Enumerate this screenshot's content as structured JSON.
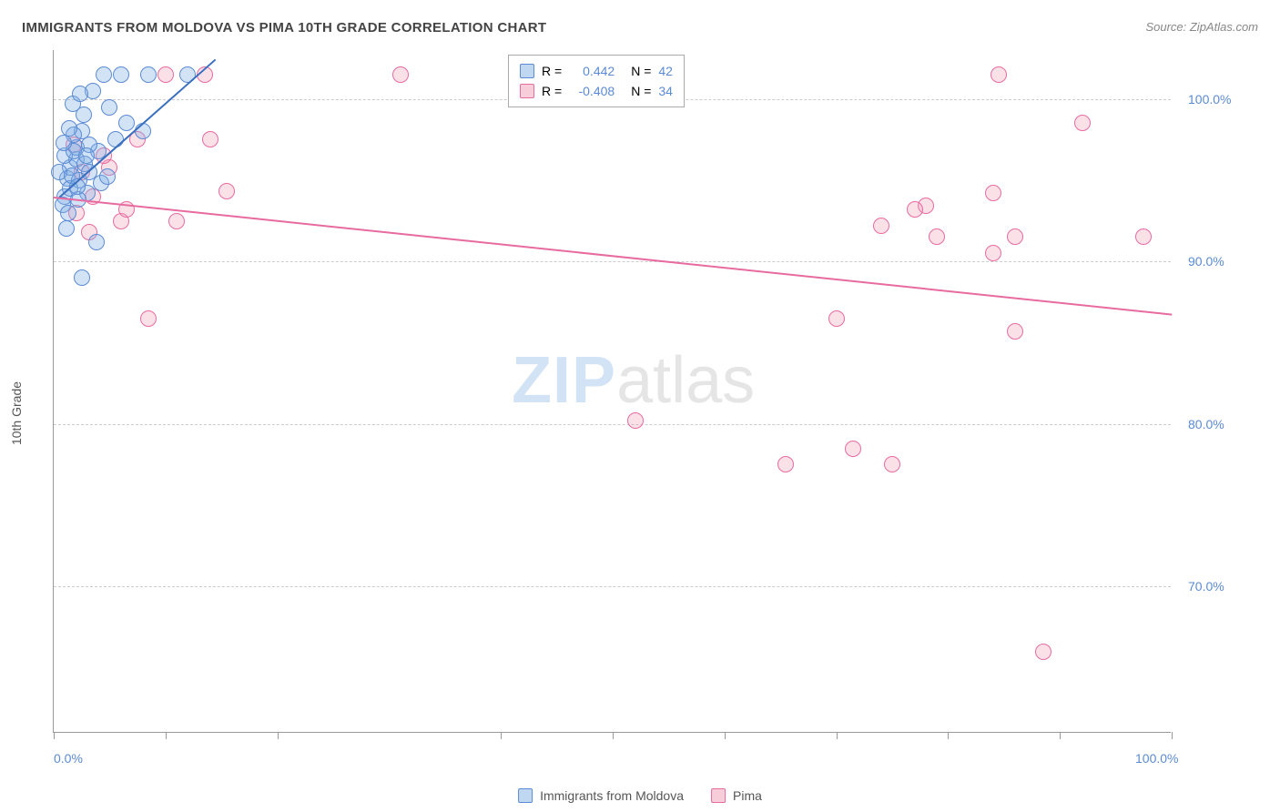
{
  "title": "IMMIGRANTS FROM MOLDOVA VS PIMA 10TH GRADE CORRELATION CHART",
  "source": "Source: ZipAtlas.com",
  "y_axis_label": "10th Grade",
  "watermark_zip": "ZIP",
  "watermark_rest": "atlas",
  "chart": {
    "type": "scatter",
    "xlim": [
      0,
      100
    ],
    "ylim": [
      61,
      103
    ],
    "y_ticks": [
      70,
      80,
      90,
      100
    ],
    "y_tick_labels": [
      "70.0%",
      "80.0%",
      "90.0%",
      "100.0%"
    ],
    "x_ticks": [
      0,
      10,
      20,
      40,
      50,
      60,
      70,
      80,
      90,
      100
    ],
    "x_tick_labels_shown": {
      "0": "0.0%",
      "100": "100.0%"
    },
    "background_color": "#ffffff",
    "grid_color": "#cccccc",
    "marker_radius": 9,
    "series": {
      "blue": {
        "label": "Immigrants from Moldova",
        "color_fill": "rgba(130,175,230,0.35)",
        "color_stroke": "#5b8bd4",
        "R": "0.442",
        "N": "42",
        "points": [
          [
            1.2,
            95.1
          ],
          [
            1.5,
            95.8
          ],
          [
            2.0,
            96.3
          ],
          [
            2.3,
            95.0
          ],
          [
            1.0,
            94.0
          ],
          [
            0.8,
            93.5
          ],
          [
            1.5,
            94.5
          ],
          [
            2.8,
            96.0
          ],
          [
            3.2,
            95.5
          ],
          [
            5.5,
            97.5
          ],
          [
            4.0,
            96.8
          ],
          [
            1.0,
            96.5
          ],
          [
            2.5,
            98.0
          ],
          [
            3.5,
            100.5
          ],
          [
            4.5,
            101.5
          ],
          [
            6.0,
            101.5
          ],
          [
            8.5,
            101.5
          ],
          [
            12.0,
            101.5
          ],
          [
            2.0,
            97.0
          ],
          [
            1.8,
            97.8
          ],
          [
            6.5,
            98.5
          ],
          [
            8.0,
            98.0
          ],
          [
            3.0,
            94.2
          ],
          [
            2.2,
            93.8
          ],
          [
            1.3,
            93.0
          ],
          [
            4.2,
            94.8
          ],
          [
            0.5,
            95.5
          ],
          [
            1.8,
            96.8
          ],
          [
            2.7,
            99.0
          ],
          [
            1.1,
            92.0
          ],
          [
            3.8,
            91.2
          ],
          [
            2.5,
            89.0
          ],
          [
            5.0,
            99.5
          ],
          [
            3.2,
            97.2
          ],
          [
            1.6,
            95.3
          ],
          [
            2.1,
            94.6
          ],
          [
            0.9,
            97.3
          ],
          [
            1.4,
            98.2
          ],
          [
            2.9,
            96.5
          ],
          [
            4.8,
            95.2
          ],
          [
            1.7,
            99.7
          ],
          [
            2.4,
            100.3
          ]
        ],
        "trend": {
          "x1": 0.5,
          "y1": 94.0,
          "x2": 14.5,
          "y2": 102.5
        }
      },
      "pink": {
        "label": "Pima",
        "color_fill": "rgba(240,155,180,0.3)",
        "color_stroke": "#e86ba0",
        "R": "-0.408",
        "N": "34",
        "points": [
          [
            2.5,
            95.5
          ],
          [
            3.5,
            94.0
          ],
          [
            5.0,
            95.8
          ],
          [
            6.0,
            92.5
          ],
          [
            7.5,
            97.5
          ],
          [
            10.0,
            101.5
          ],
          [
            11.0,
            92.5
          ],
          [
            13.5,
            101.5
          ],
          [
            15.5,
            94.3
          ],
          [
            14.0,
            97.5
          ],
          [
            6.5,
            93.2
          ],
          [
            3.2,
            91.8
          ],
          [
            8.5,
            86.5
          ],
          [
            31.0,
            101.5
          ],
          [
            52.0,
            80.2
          ],
          [
            65.5,
            77.5
          ],
          [
            70.0,
            86.5
          ],
          [
            71.5,
            78.5
          ],
          [
            75.0,
            77.5
          ],
          [
            74.0,
            92.2
          ],
          [
            78.0,
            93.4
          ],
          [
            77.0,
            93.2
          ],
          [
            79.0,
            91.5
          ],
          [
            84.0,
            90.5
          ],
          [
            84.0,
            94.2
          ],
          [
            84.5,
            101.5
          ],
          [
            86.0,
            85.7
          ],
          [
            86.0,
            91.5
          ],
          [
            92.0,
            98.5
          ],
          [
            97.5,
            91.5
          ],
          [
            88.5,
            66.0
          ],
          [
            2.0,
            93.0
          ],
          [
            4.5,
            96.5
          ],
          [
            1.8,
            97.2
          ]
        ],
        "trend": {
          "x1": 0,
          "y1": 94.0,
          "x2": 100,
          "y2": 86.8
        }
      }
    }
  },
  "legend_stats": {
    "r_label": "R =",
    "n_label": "N ="
  },
  "bottom_legend": {
    "item1": "Immigrants from Moldova",
    "item2": "Pima"
  }
}
